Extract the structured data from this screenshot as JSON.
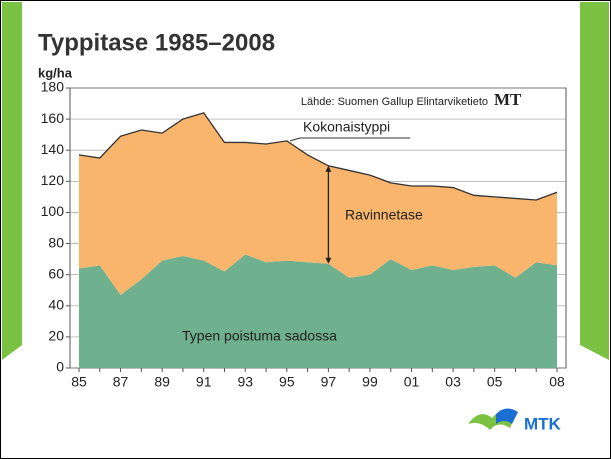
{
  "chart_data": {
    "type": "stacked_area",
    "title": "Typpitase 1985–2008",
    "y_label": "kg/ha",
    "source": "Lähde: Suomen Gallup Elintarviketieto",
    "source_logo": "MT",
    "logo": "MTK",
    "top_line_label": "Kokonaistyppi",
    "categories": [
      "85",
      null,
      "87",
      null,
      "89",
      null,
      "91",
      null,
      "93",
      null,
      "95",
      null,
      "97",
      null,
      "99",
      null,
      "01",
      null,
      "03",
      null,
      "05",
      null,
      null,
      "08"
    ],
    "series": [
      {
        "name": "Typen poistuma sadossa",
        "color": "#6fb08f",
        "values": [
          64,
          66,
          47,
          57,
          69,
          72,
          69,
          62,
          73,
          68,
          69,
          68,
          67,
          58,
          60,
          70,
          63,
          66,
          63,
          65,
          66,
          58,
          68,
          66
        ]
      },
      {
        "name": "Ravinnetase",
        "color": "#f9b56b",
        "values": [
          73,
          69,
          102,
          96,
          82,
          88,
          95,
          83,
          72,
          76,
          77,
          69,
          63,
          69,
          64,
          49,
          54,
          51,
          53,
          46,
          44,
          51,
          40,
          47
        ]
      }
    ],
    "ylim": [
      0,
      180
    ],
    "yticks": [
      0,
      20,
      40,
      60,
      80,
      100,
      120,
      140,
      160,
      180
    ],
    "grid": true
  }
}
